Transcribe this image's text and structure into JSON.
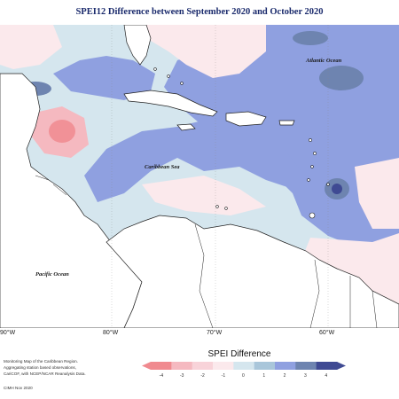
{
  "title": "SPEI12 Difference between September 2020 and October 2020",
  "labels": {
    "atlantic": "Atlantic Ocean",
    "caribbean": "Caribbean Sea",
    "pacific": "Pacific Ocean"
  },
  "longitudes": [
    "90°W",
    "80°W",
    "70°W",
    "60°W"
  ],
  "credits": {
    "line1": "Monitoring Map of the Caribbean Region.",
    "line2": "Aggregating station based observations,",
    "line3": "CariCOF, with NCEP/NCAR Reanalysis Data.",
    "date": "CIMH Nov 2020"
  },
  "legend": {
    "title": "SPEI Difference",
    "ticks": [
      "-4",
      "-3",
      "-2",
      "-1",
      "0",
      "1",
      "2",
      "3",
      "4"
    ],
    "colors": [
      "#f08a8f",
      "#f5b9c0",
      "#f8d3d9",
      "#fbe9ec",
      "#d5e6ee",
      "#a9c6da",
      "#8fa0e0",
      "#6e84b0",
      "#3f4a93"
    ]
  }
}
